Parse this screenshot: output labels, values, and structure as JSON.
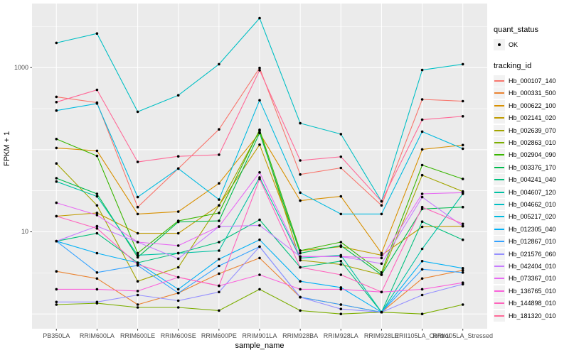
{
  "figure_bg": "#ffffff",
  "panel_bg": "#EBEBEB",
  "grid_color": "#FFFFFF",
  "tick_label_color": "#4D4D4D",
  "point_color": "#000000",
  "axes": {
    "y_title": "FPKM + 1",
    "x_title": "sample_name",
    "y_tick_labels": [
      "1000",
      "10"
    ],
    "y_tick_values": [
      1000,
      10
    ]
  },
  "legend": {
    "quant_title": "quant_status",
    "quant_value": "OK",
    "tracking_title": "tracking_id"
  },
  "chart_data": {
    "type": "line",
    "title": "",
    "xlabel": "sample_name",
    "ylabel": "FPKM + 1",
    "y_scale": "log10",
    "y_axis_ticks": [
      10,
      1000
    ],
    "grid": true,
    "legend_position": "right",
    "quant_status": "OK",
    "categories": [
      "PB350LA",
      "RRIM600LA",
      "RRIM600LE",
      "RRIM600SE",
      "RRIM600PE",
      "RRIM901LA",
      "RRIM928BA",
      "RRIM928LA",
      "RRIM928LE",
      "RRII105LA_Control",
      "RRII105LA_Stressed"
    ],
    "series": [
      {
        "name": "Hb_000107_140",
        "color": "#F8766D",
        "values": [
          440,
          375,
          20,
          59,
          177,
          990,
          50,
          60,
          21,
          410,
          390
        ]
      },
      {
        "name": "Hb_000331_500",
        "color": "#EA8331",
        "values": [
          3.3,
          2.7,
          1.3,
          1.8,
          3.1,
          4.8,
          1.6,
          1.3,
          1.05,
          2.7,
          3.4
        ]
      },
      {
        "name": "Hb_000622_100",
        "color": "#D89000",
        "values": [
          105,
          97,
          16.5,
          17.6,
          39,
          160,
          24,
          27,
          5.5,
          101,
          114
        ]
      },
      {
        "name": "Hb_002141_020",
        "color": "#C09B00",
        "values": [
          15.5,
          17,
          9.6,
          9.6,
          21,
          115,
          5.9,
          6.6,
          5.2,
          11.5,
          11.7
        ]
      },
      {
        "name": "Hb_002639_070",
        "color": "#A3A500",
        "values": [
          68,
          21,
          2.5,
          3.7,
          21,
          170,
          4.5,
          4.0,
          3.0,
          49,
          31
        ]
      },
      {
        "name": "Hb_002863_010",
        "color": "#7CAE00",
        "values": [
          1.3,
          1.35,
          1.2,
          1.2,
          1.1,
          2.0,
          1.1,
          1.0,
          1.05,
          1.0,
          1.3
        ]
      },
      {
        "name": "Hb_002904_090",
        "color": "#39B600",
        "values": [
          135,
          84,
          5.5,
          13.6,
          17,
          175,
          5.9,
          7.5,
          3.2,
          65,
          44
        ]
      },
      {
        "name": "Hb_003376_170",
        "color": "#00BB4E",
        "values": [
          45,
          29,
          4.9,
          13.2,
          13.6,
          160,
          5.5,
          6.8,
          3.0,
          19,
          20
        ]
      },
      {
        "name": "Hb_004241_040",
        "color": "#00BF7D",
        "values": [
          7.7,
          9.6,
          4.2,
          5.5,
          7.5,
          14,
          3.7,
          4.4,
          1.05,
          13.3,
          8
        ]
      },
      {
        "name": "Hb_004607_120",
        "color": "#00C1A3",
        "values": [
          41,
          27,
          5.2,
          5.5,
          5.9,
          46,
          4.8,
          5.2,
          1.05,
          6.2,
          29
        ]
      },
      {
        "name": "Hb_004662_010",
        "color": "#00BFC4",
        "values": [
          2000,
          2600,
          290,
          460,
          1100,
          4000,
          210,
          155,
          23.5,
          935,
          1100
        ]
      },
      {
        "name": "Hb_005217_020",
        "color": "#00BAE0",
        "values": [
          300,
          365,
          26.5,
          59,
          24.7,
          400,
          30,
          16.5,
          16.5,
          166,
          103
        ]
      },
      {
        "name": "Hb_012305_040",
        "color": "#00B0F6",
        "values": [
          7.7,
          5.5,
          4.2,
          2.0,
          4.65,
          8,
          2.5,
          2.1,
          1.05,
          4.4,
          3.6
        ]
      },
      {
        "name": "Hb_012867_010",
        "color": "#35A2FF",
        "values": [
          7.7,
          3.2,
          3.9,
          1.8,
          3.85,
          6.6,
          1.6,
          1.3,
          1.05,
          3.5,
          3.2
        ]
      },
      {
        "name": "Hb_021576_060",
        "color": "#9590FF",
        "values": [
          1.4,
          1.4,
          1.7,
          1.45,
          1.85,
          6.6,
          1.6,
          1.15,
          1.05,
          1.7,
          2.3
        ]
      },
      {
        "name": "Hb_042404_010",
        "color": "#C77CFF",
        "values": [
          7.7,
          11.7,
          7.5,
          4.7,
          11.6,
          12,
          5.0,
          5.0,
          4.1,
          26.5,
          11.7
        ]
      },
      {
        "name": "Hb_073367_010",
        "color": "#E76BF3",
        "values": [
          22.6,
          16,
          7.5,
          6.8,
          11.6,
          53,
          5.0,
          5.0,
          4.8,
          29,
          30
        ]
      },
      {
        "name": "Hb_136765_010",
        "color": "#FA62DB",
        "values": [
          2.0,
          2.0,
          1.9,
          2.8,
          2.2,
          3.0,
          2.0,
          2.0,
          1.85,
          2.0,
          2.4
        ]
      },
      {
        "name": "Hb_144898_010",
        "color": "#FF62BC",
        "values": [
          15.5,
          11,
          4.0,
          2.8,
          2.2,
          44,
          3.7,
          3.0,
          1.85,
          20,
          12.5
        ]
      },
      {
        "name": "Hb_181320_010",
        "color": "#FF6A98",
        "values": [
          380,
          535,
          71,
          83,
          87,
          930,
          74,
          82,
          23.5,
          232,
          255
        ]
      }
    ]
  }
}
